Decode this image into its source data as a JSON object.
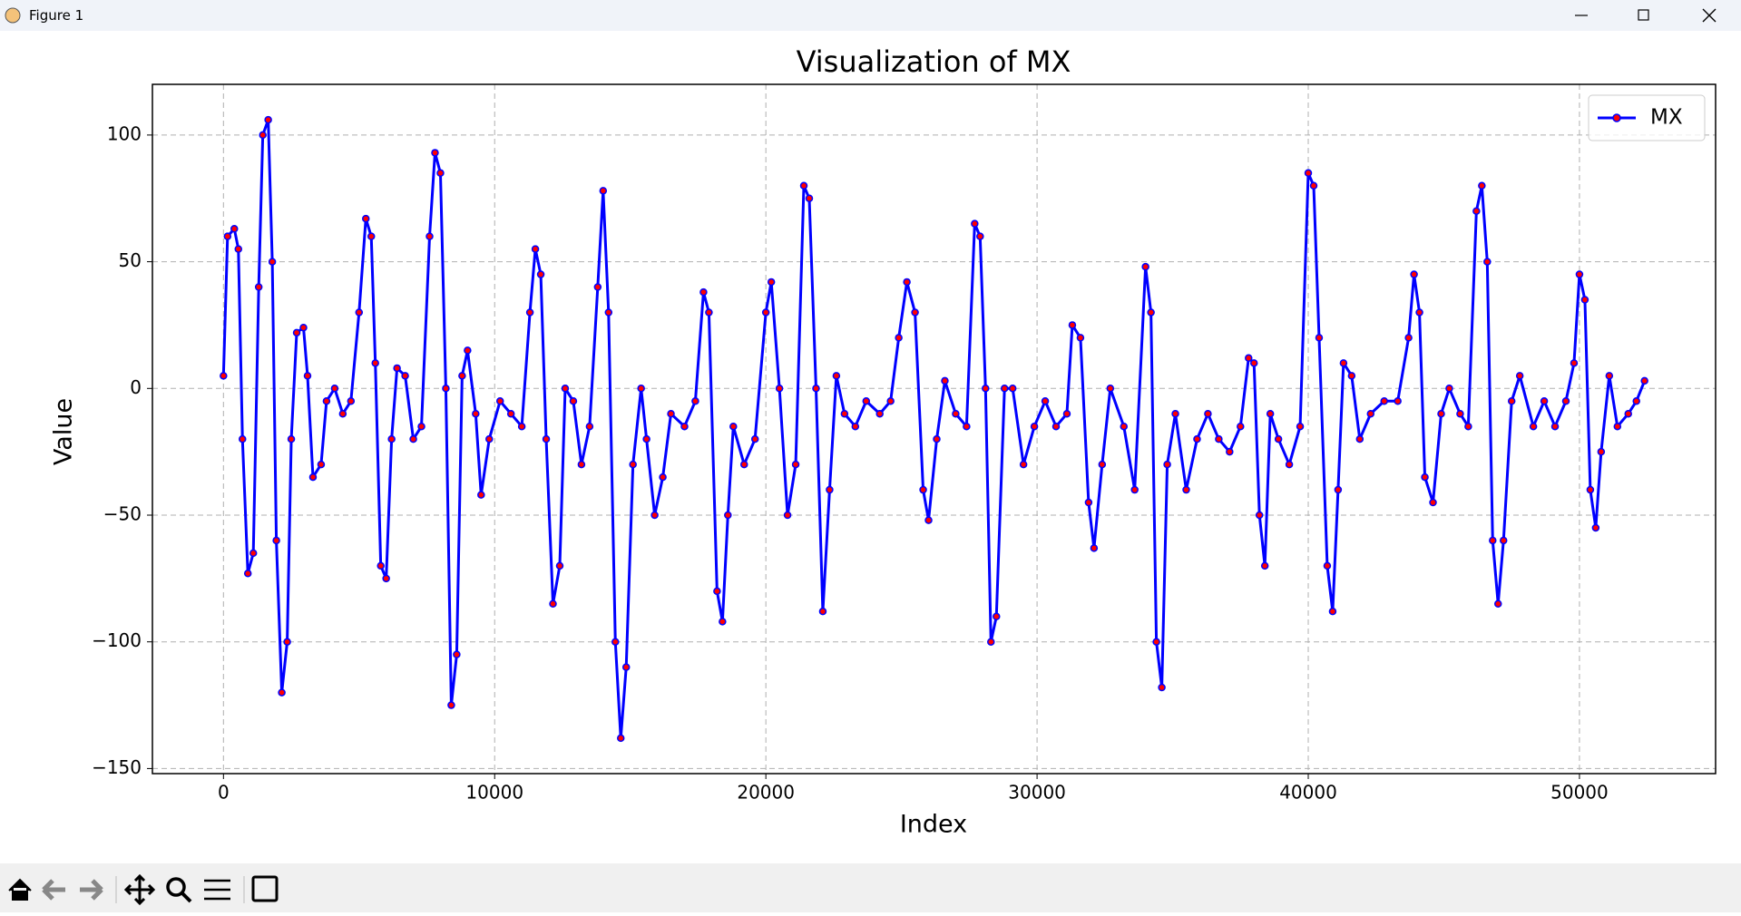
{
  "window": {
    "title": "Figure 1"
  },
  "chart_data": {
    "type": "line",
    "title": "Visualization of MX",
    "x_label": "Index",
    "y_label": "Value",
    "x": [
      0,
      150,
      400,
      550,
      700,
      900,
      1100,
      1300,
      1450,
      1650,
      1800,
      1950,
      2150,
      2350,
      2500,
      2700,
      2950,
      3100,
      3300,
      3600,
      3800,
      4100,
      4400,
      4700,
      5000,
      5250,
      5450,
      5600,
      5800,
      6000,
      6200,
      6400,
      6700,
      7000,
      7300,
      7600,
      7800,
      8000,
      8200,
      8400,
      8600,
      8800,
      9000,
      9300,
      9500,
      9800,
      10200,
      10600,
      11000,
      11300,
      11500,
      11700,
      11900,
      12150,
      12400,
      12600,
      12900,
      13200,
      13500,
      13800,
      14000,
      14200,
      14450,
      14650,
      14850,
      15100,
      15400,
      15600,
      15900,
      16200,
      16500,
      17000,
      17400,
      17700,
      17900,
      18200,
      18400,
      18600,
      18800,
      19200,
      19600,
      20000,
      20200,
      20500,
      20800,
      21100,
      21400,
      21600,
      21850,
      22100,
      22350,
      22600,
      22900,
      23300,
      23700,
      24200,
      24600,
      24900,
      25200,
      25500,
      25800,
      26000,
      26300,
      26600,
      27000,
      27400,
      27700,
      27900,
      28100,
      28300,
      28500,
      28800,
      29100,
      29500,
      29900,
      30300,
      30700,
      31100,
      31300,
      31600,
      31900,
      32100,
      32400,
      32700,
      33200,
      33600,
      34000,
      34200,
      34400,
      34600,
      34800,
      35100,
      35500,
      35900,
      36300,
      36700,
      37100,
      37500,
      37800,
      38000,
      38200,
      38400,
      38600,
      38900,
      39300,
      39700,
      40000,
      40200,
      40400,
      40700,
      40900,
      41100,
      41300,
      41600,
      41900,
      42300,
      42800,
      43300,
      43700,
      43900,
      44100,
      44300,
      44600,
      44900,
      45200,
      45600,
      45900,
      46200,
      46400,
      46600,
      46800,
      47000,
      47200,
      47500,
      47800,
      48300,
      48700,
      49100,
      49500,
      49800,
      50000,
      50200,
      50400,
      50600,
      50800,
      51100,
      51400,
      51800,
      52100,
      52400
    ],
    "series": [
      {
        "name": "MX",
        "color": "#0000ff",
        "marker_color": "#ff0000",
        "values": [
          5,
          60,
          63,
          55,
          -20,
          -73,
          -65,
          40,
          100,
          106,
          50,
          -60,
          -120,
          -100,
          -20,
          22,
          24,
          5,
          -35,
          -30,
          -5,
          0,
          -10,
          -5,
          30,
          67,
          60,
          10,
          -70,
          -75,
          -20,
          8,
          5,
          -20,
          -15,
          60,
          93,
          85,
          0,
          -125,
          -105,
          5,
          15,
          -10,
          -42,
          -20,
          -5,
          -10,
          -15,
          30,
          55,
          45,
          -20,
          -85,
          -70,
          0,
          -5,
          -30,
          -15,
          40,
          78,
          30,
          -100,
          -138,
          -110,
          -30,
          0,
          -20,
          -50,
          -35,
          -10,
          -15,
          -5,
          38,
          30,
          -80,
          -92,
          -50,
          -15,
          -30,
          -20,
          30,
          42,
          0,
          -50,
          -30,
          80,
          75,
          0,
          -88,
          -40,
          5,
          -10,
          -15,
          -5,
          -10,
          -5,
          20,
          42,
          30,
          -40,
          -52,
          -20,
          3,
          -10,
          -15,
          65,
          60,
          0,
          -100,
          -90,
          0,
          0,
          -30,
          -15,
          -5,
          -15,
          -10,
          25,
          20,
          -45,
          -63,
          -30,
          0,
          -15,
          -40,
          48,
          30,
          -100,
          -118,
          -30,
          -10,
          -40,
          -20,
          -10,
          -20,
          -25,
          -15,
          12,
          10,
          -50,
          -70,
          -10,
          -20,
          -30,
          -15,
          85,
          80,
          20,
          -70,
          -88,
          -40,
          10,
          5,
          -20,
          -10,
          -5,
          -5,
          20,
          45,
          30,
          -35,
          -45,
          -10,
          0,
          -10,
          -15,
          70,
          80,
          50,
          -60,
          -85,
          -60,
          -5,
          5,
          -15,
          -5,
          -15,
          -5,
          10,
          45,
          35,
          -40,
          -55,
          -25,
          5,
          -15,
          -10,
          -5,
          3
        ]
      }
    ],
    "xlim": [
      -2620,
      55020
    ],
    "ylim": [
      -152,
      120
    ],
    "xticks": [
      0,
      10000,
      20000,
      30000,
      40000,
      50000
    ],
    "yticks": [
      {
        "value": -150,
        "label": "−150"
      },
      {
        "value": -100,
        "label": "−100"
      },
      {
        "value": -50,
        "label": "−50"
      },
      0,
      50,
      100
    ],
    "grid": true,
    "legend": "upper right"
  }
}
